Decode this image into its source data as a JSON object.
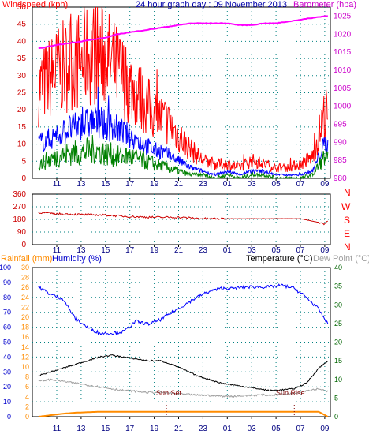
{
  "colors": {
    "wind_gust": "#ff0000",
    "wind_avg": "#0000ff",
    "wind_bottom": "#008000",
    "barometer": "#ff00ff",
    "direction": "#cc0000",
    "rainfall": "#ff8c00",
    "humidity": "#0000ff",
    "temperature": "#000000",
    "dewpoint": "#a0a0a0",
    "sun_marker": "#800000",
    "grid_dots": "#008080",
    "axis_wind": "#cc0000",
    "axis_baro": "#cc00cc",
    "axis_temp": "#006400",
    "axis_hum": "#0000cc",
    "axis_rain": "#ff8c00"
  },
  "chart_data": [
    {
      "type": "line",
      "panel": "wind",
      "title": "24 hour graph day : 09 November 2013",
      "ylabel_left": "Windspeed (kph)",
      "ylabel_right": "Barometer (hpa)",
      "x_tick_labels": [
        "11",
        "13",
        "15",
        "17",
        "19",
        "21",
        "23",
        "01",
        "03",
        "05",
        "07",
        "09"
      ],
      "y_left_ticks": [
        "0",
        "5",
        "10",
        "15",
        "20",
        "25",
        "30",
        "35",
        "40",
        "45",
        "50"
      ],
      "ylim_left": [
        0,
        50
      ],
      "y_right_ticks": [
        "980",
        "985",
        "990",
        "995",
        "1000",
        "1005",
        "1010",
        "1015",
        "1020",
        "1025"
      ],
      "ylim_right": [
        980,
        1027.5
      ],
      "grid": true,
      "x": [
        "09:30",
        "11:00",
        "12:00",
        "13:00",
        "14:00",
        "15:00",
        "16:00",
        "17:00",
        "18:00",
        "19:00",
        "20:00",
        "21:00",
        "22:00",
        "23:00",
        "00:00",
        "01:00",
        "02:00",
        "03:00",
        "04:00",
        "05:00",
        "06:00",
        "07:00",
        "08:00",
        "09:00",
        "09:15"
      ],
      "series": [
        {
          "key": "gust",
          "values": [
            25,
            30,
            32,
            33,
            35,
            34,
            30,
            26,
            22,
            18,
            16,
            12,
            8,
            5,
            4,
            4,
            3,
            5,
            4,
            3,
            3,
            4,
            6,
            18,
            16
          ]
        },
        {
          "key": "average",
          "values": [
            10,
            12,
            14,
            15,
            16,
            15,
            14,
            12,
            10,
            8,
            7,
            5,
            3,
            2,
            1,
            2,
            1,
            2,
            2,
            1,
            1,
            1,
            2,
            10,
            9
          ]
        },
        {
          "key": "low",
          "values": [
            4,
            6,
            7,
            7,
            8,
            7,
            6,
            6,
            5,
            4,
            3,
            2,
            1,
            1,
            0,
            1,
            0,
            1,
            1,
            0,
            0,
            0,
            1,
            6,
            5
          ]
        },
        {
          "key": "barometer",
          "values": [
            1016,
            1017,
            1017.5,
            1018,
            1018.5,
            1019,
            1020,
            1020.5,
            1021,
            1021.5,
            1022,
            1022.5,
            1023,
            1023,
            1023,
            1023,
            1022.5,
            1022.5,
            1023,
            1023,
            1023.5,
            1024,
            1024.5,
            1025,
            1025
          ]
        }
      ]
    },
    {
      "type": "line",
      "panel": "direction",
      "y_left_ticks": [
        "0",
        "90",
        "180",
        "270",
        "360"
      ],
      "ylim": [
        0,
        360
      ],
      "compass_labels": [
        "N",
        "W",
        "S",
        "E",
        "N"
      ],
      "x_tick_labels": [
        "11",
        "13",
        "15",
        "17",
        "19",
        "21",
        "23",
        "01",
        "03",
        "05",
        "07",
        "09"
      ],
      "x": [
        "09:30",
        "11:00",
        "13:00",
        "15:00",
        "17:00",
        "19:00",
        "21:00",
        "23:00",
        "01:00",
        "03:00",
        "05:00",
        "07:00",
        "09:00",
        "09:15"
      ],
      "series": [
        {
          "key": "direction",
          "values": [
            230,
            220,
            215,
            210,
            200,
            195,
            195,
            185,
            185,
            185,
            185,
            185,
            150,
            170
          ]
        }
      ]
    },
    {
      "type": "line",
      "panel": "temperature",
      "ylabel_rain": "Rainfall (mm)",
      "ylabel_humidity": "Humidity (%)",
      "ylabel_temperature": "Temperature (°C)",
      "ylabel_dewpoint": "Dew Point (°C)",
      "y_humidity_ticks": [
        "0",
        "10",
        "20",
        "30",
        "40",
        "50",
        "60",
        "70",
        "80",
        "90",
        "100"
      ],
      "ylim_humidity": [
        0,
        100
      ],
      "y_rain_ticks": [
        "0",
        "2",
        "4",
        "6",
        "8",
        "10",
        "12",
        "14",
        "16",
        "18",
        "20",
        "22",
        "24",
        "26",
        "28",
        "30"
      ],
      "ylim_rain": [
        0,
        30
      ],
      "y_temp_ticks": [
        "0",
        "5",
        "10",
        "15",
        "20",
        "25",
        "30",
        "35",
        "40"
      ],
      "ylim_temp": [
        0,
        40
      ],
      "x_tick_labels": [
        "11",
        "13",
        "15",
        "17",
        "19",
        "21",
        "23",
        "01",
        "03",
        "05",
        "07",
        "09"
      ],
      "annotations": [
        "Sun Set",
        "Sun Rise"
      ],
      "x": [
        "09:30",
        "10:30",
        "11:30",
        "12:30",
        "13:30",
        "14:30",
        "15:30",
        "16:30",
        "17:30",
        "18:30",
        "19:30",
        "20:30",
        "21:30",
        "22:30",
        "23:30",
        "00:30",
        "01:30",
        "02:30",
        "03:30",
        "04:30",
        "05:30",
        "06:30",
        "07:30",
        "08:30",
        "09:15"
      ],
      "series": [
        {
          "key": "humidity",
          "values": [
            87,
            82,
            79,
            66,
            60,
            56,
            56,
            57,
            64,
            62,
            65,
            70,
            75,
            80,
            84,
            86,
            86,
            87,
            87,
            87,
            88,
            86,
            80,
            72,
            62
          ]
        },
        {
          "key": "temperature",
          "values": [
            11,
            12,
            13,
            14,
            15,
            16,
            16.5,
            16,
            15.5,
            15,
            15,
            14,
            12.5,
            11,
            10,
            9,
            8.5,
            8,
            7.5,
            7,
            7.2,
            7.5,
            9,
            13,
            15
          ]
        },
        {
          "key": "dewpoint",
          "values": [
            9.5,
            10,
            9.5,
            9,
            8.5,
            8,
            7.5,
            7,
            6.8,
            6.5,
            6.5,
            6.2,
            6,
            5.8,
            5.7,
            5.5,
            5.5,
            5.6,
            5.8,
            5.8,
            6,
            6.3,
            7,
            7.5,
            6.8
          ]
        },
        {
          "key": "rainfall",
          "values": [
            0,
            0.3,
            0.6,
            0.8,
            0.9,
            1,
            1,
            1,
            1,
            1,
            1,
            1,
            1,
            1,
            1,
            1,
            1,
            1,
            1,
            1,
            1,
            1,
            1,
            1,
            0
          ]
        }
      ]
    }
  ]
}
